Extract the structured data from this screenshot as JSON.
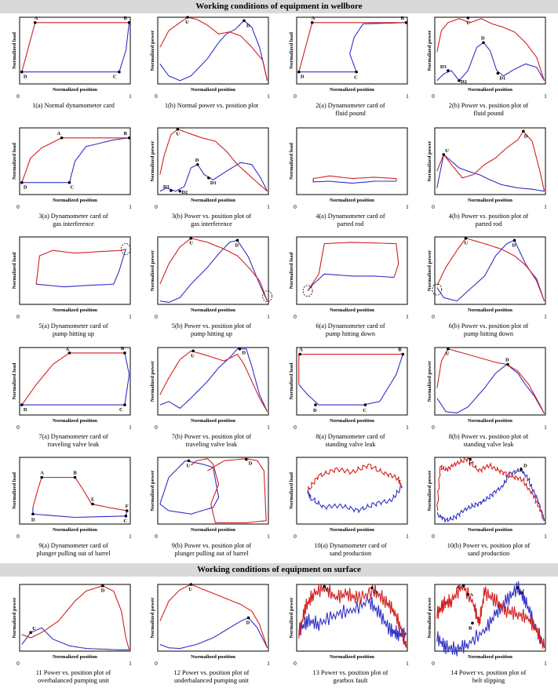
{
  "sections": {
    "wellbore": "Working conditions of equipment in wellbore",
    "surface": "Working conditions of equipment on surface"
  },
  "colors": {
    "red": "#d32020",
    "blue": "#3030c8"
  },
  "panels": [
    {
      "id": "1a",
      "cap1": "1(a) Normal dynamometer card",
      "cap2": "",
      "xlabel": "Normalized position",
      "ylabel": "Normalized load",
      "ticks": [
        "0",
        "1"
      ],
      "points": [
        "A",
        "B",
        "C",
        "D"
      ]
    },
    {
      "id": "1b",
      "cap1": "1(b) Normal power vs. position plot",
      "cap2": "",
      "xlabel": "Normalized position",
      "ylabel": "Normalized power",
      "ticks": [
        "0",
        "1"
      ],
      "points": [
        "U",
        "D"
      ]
    },
    {
      "id": "2a",
      "cap1": "2(a) Dynamometer card of",
      "cap2": "fluid pound",
      "xlabel": "Normalized position",
      "ylabel": "Normalized load",
      "ticks": [
        "0",
        "1"
      ],
      "points": [
        "A",
        "B",
        "C",
        "D"
      ]
    },
    {
      "id": "2b",
      "cap1": "2(b) Power vs. position plot of",
      "cap2": "fluid pound",
      "xlabel": "Normalized position",
      "ylabel": "Normalized power",
      "ticks": [
        "0",
        "1"
      ],
      "points": [
        "U",
        "D",
        "D1",
        "D2",
        "D3"
      ]
    },
    {
      "id": "3a",
      "cap1": "3(a) Dynamometer card of",
      "cap2": "gas interference",
      "xlabel": "Normalized position",
      "ylabel": "Normalized load",
      "ticks": [
        "0",
        "1"
      ],
      "points": [
        "A",
        "B",
        "C",
        "D"
      ]
    },
    {
      "id": "3b",
      "cap1": "3(b) Power vs. position plot of",
      "cap2": "gas interference",
      "xlabel": "Normalized position",
      "ylabel": "Normalized power",
      "ticks": [
        "0",
        "1"
      ],
      "points": [
        "U",
        "D",
        "D1",
        "D2",
        "D3"
      ]
    },
    {
      "id": "4a",
      "cap1": "4(a) Dynamometer card of",
      "cap2": "parted rod",
      "xlabel": "Normalized position",
      "ylabel": "Normalized load",
      "ticks": [
        "0",
        "1"
      ],
      "points": []
    },
    {
      "id": "4b",
      "cap1": "4(b) Power vs. position plot of",
      "cap2": "parted rod",
      "xlabel": "Normalized position",
      "ylabel": "Normalized power",
      "ticks": [
        "0",
        "1"
      ],
      "points": [
        "U",
        "D"
      ]
    },
    {
      "id": "5a",
      "cap1": "5(a) Dynamometer card of",
      "cap2": "pump hitting up",
      "xlabel": "Normalized position",
      "ylabel": "Normalized load",
      "ticks": [
        "0",
        "1"
      ],
      "points": []
    },
    {
      "id": "5b",
      "cap1": "5(b) Power vs. position plot of",
      "cap2": "pump hitting up",
      "xlabel": "Normalized position",
      "ylabel": "Normalized power",
      "ticks": [
        "0",
        "1"
      ],
      "points": [
        "U",
        "D"
      ]
    },
    {
      "id": "6a",
      "cap1": "6(a) Dynamometer card of",
      "cap2": "pump hitting down",
      "xlabel": "Normalized position",
      "ylabel": "Normalized load",
      "ticks": [
        "0",
        "1"
      ],
      "points": []
    },
    {
      "id": "6b",
      "cap1": "6(b) Power vs. position plot of",
      "cap2": "pump hitting down",
      "xlabel": "Normalized position",
      "ylabel": "Normalized power",
      "ticks": [
        "0",
        "1"
      ],
      "points": [
        "U",
        "D"
      ]
    },
    {
      "id": "7a",
      "cap1": "7(a) Dynamometer card of",
      "cap2": "traveling valve leak",
      "xlabel": "Normalized position",
      "ylabel": "Normalized load",
      "ticks": [
        "0",
        "1"
      ],
      "points": [
        "A",
        "B",
        "C",
        "D"
      ]
    },
    {
      "id": "7b",
      "cap1": "7(b) Power vs. position plot of",
      "cap2": "traveling valve leak",
      "xlabel": "Normalized position",
      "ylabel": "Normalized power",
      "ticks": [
        "0",
        "1"
      ],
      "points": [
        "U",
        "D"
      ]
    },
    {
      "id": "8a",
      "cap1": "8(a) Dynamometer card of",
      "cap2": "standing valve leak",
      "xlabel": "Normalized position",
      "ylabel": "Normalized load",
      "ticks": [
        "0",
        "1"
      ],
      "points": [
        "A",
        "B",
        "C",
        "D"
      ]
    },
    {
      "id": "8b",
      "cap1": "8(b) Power vs. position plot of",
      "cap2": "standing valve leak",
      "xlabel": "Normalized position",
      "ylabel": "Normalized power",
      "ticks": [
        "0",
        "1"
      ],
      "points": [
        "U",
        "D"
      ]
    },
    {
      "id": "9a",
      "cap1": "9(a) Dynamometer card of",
      "cap2": "plunger pulling out of barrel",
      "xlabel": "Normalized position",
      "ylabel": "Normalized load",
      "ticks": [
        "0",
        "1"
      ],
      "points": [
        "A",
        "B",
        "C",
        "D",
        "E",
        "F"
      ]
    },
    {
      "id": "9b",
      "cap1": "9(b) Power vs. position plot of",
      "cap2": "plunger pulling out of barrel",
      "xlabel": "Normalized position",
      "ylabel": "Normalized power",
      "ticks": [
        "0",
        "1"
      ],
      "points": [
        "U",
        "D"
      ]
    },
    {
      "id": "10a",
      "cap1": "10(a) Dynamometer card of",
      "cap2": "sand production",
      "xlabel": "Normalized position",
      "ylabel": "Normalized load",
      "ticks": [
        "0",
        "1"
      ],
      "points": []
    },
    {
      "id": "10b",
      "cap1": "10(b) Power vs. position plot of",
      "cap2": "sand production",
      "xlabel": "Normalized position",
      "ylabel": "Normalized power",
      "ticks": [
        "0",
        "1"
      ],
      "points": [
        "U",
        "D"
      ]
    },
    {
      "id": "11",
      "cap1": "11 Power vs. position plot of",
      "cap2": "overbalanced pumping unit",
      "xlabel": "Normalized position",
      "ylabel": "Normalized power",
      "ticks": [
        "0",
        "1"
      ],
      "points": [
        "U",
        "D"
      ]
    },
    {
      "id": "12",
      "cap1": "12 Power vs. position plot of",
      "cap2": "underbalanced pumping unit",
      "xlabel": "Normalized position",
      "ylabel": "Normalized power",
      "ticks": [
        "0",
        "1"
      ],
      "points": [
        "U",
        "D"
      ]
    },
    {
      "id": "13",
      "cap1": "13 Power vs. position plot of",
      "cap2": "gearbox fault",
      "xlabel": "Normalized position",
      "ylabel": "Normalized power",
      "ticks": [
        "0",
        "1"
      ],
      "points": [
        "U",
        "D"
      ]
    },
    {
      "id": "14",
      "cap1": "14 Power vs. position plot of",
      "cap2": "belt slipping",
      "xlabel": "Normalized position",
      "ylabel": "Normalized power",
      "ticks": [
        "0",
        "1"
      ],
      "points": [
        "U",
        "D",
        "A",
        "B"
      ]
    }
  ]
}
